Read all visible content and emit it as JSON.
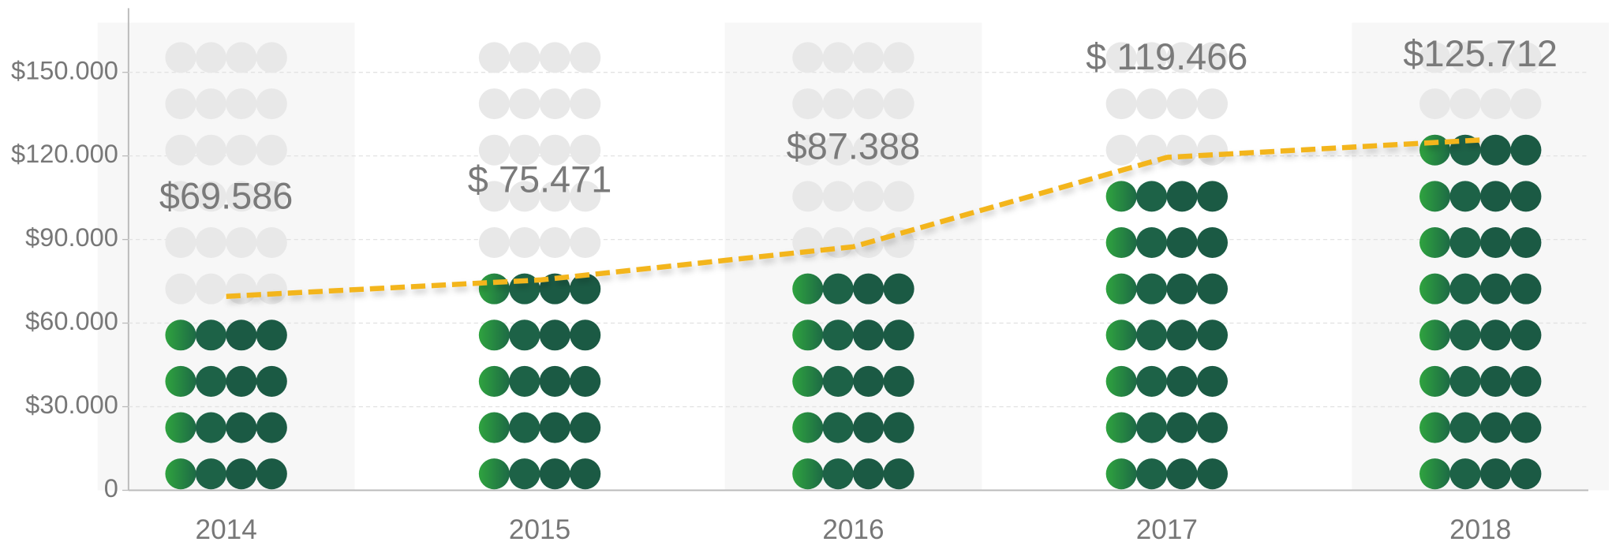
{
  "chart_data": {
    "type": "dot-column",
    "categories": [
      "2014",
      "2015",
      "2016",
      "2017",
      "2018"
    ],
    "values": [
      69586,
      75471,
      87388,
      119466,
      125712
    ],
    "value_labels": [
      "$69.586",
      "$ 75.471",
      "$87.388",
      "$ 119.466",
      "$125.712"
    ],
    "ylim": [
      0,
      173000
    ],
    "yticks": [
      0,
      {
        "value": 30000,
        "label": "$30.000"
      },
      {
        "value": 60000,
        "label": "$60.000"
      },
      {
        "value": 90000,
        "label": "$90.000"
      },
      {
        "value": 120000,
        "label": "$120.000"
      },
      {
        "value": 150000,
        "label": "$150.000"
      }
    ],
    "grid": true,
    "color": "#1b5a44",
    "line_color": "#f3b51c"
  }
}
